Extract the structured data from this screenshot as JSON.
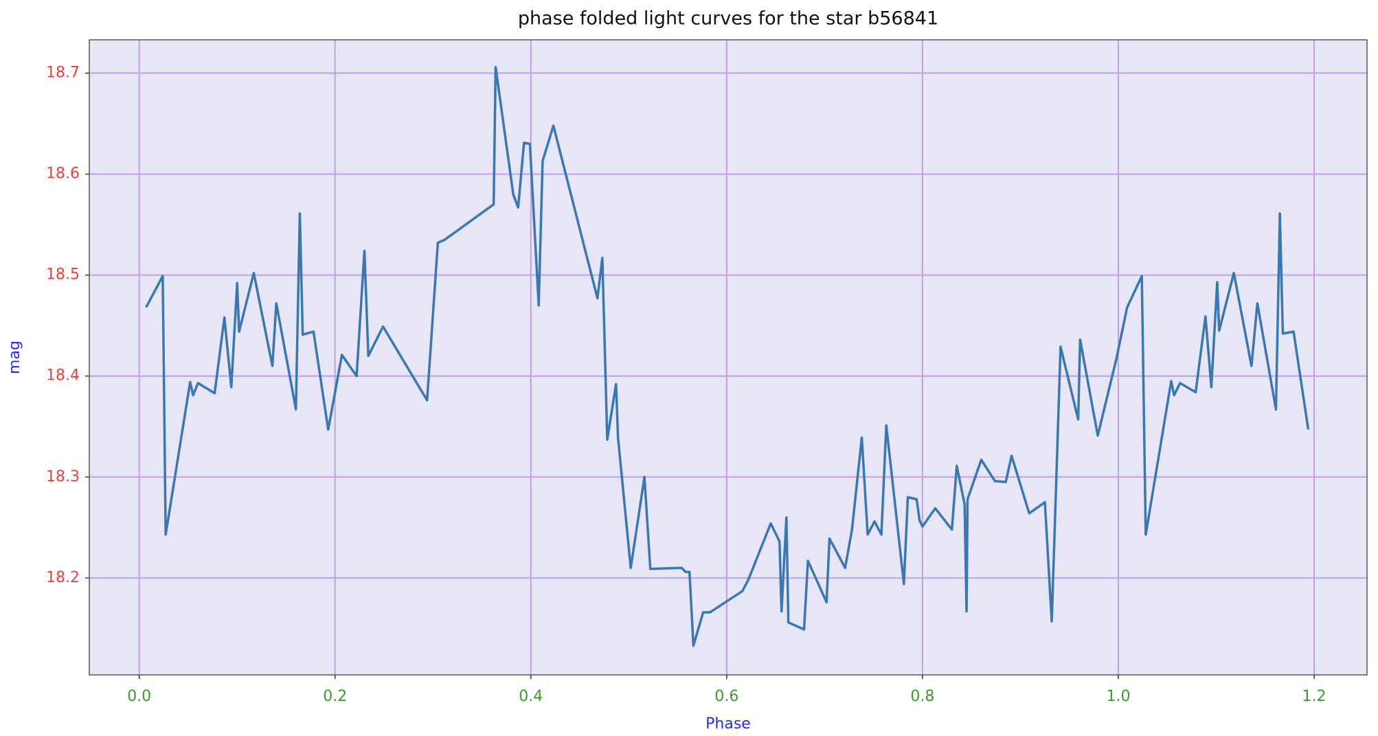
{
  "chart_data": {
    "type": "line",
    "title": "phase folded light curves for the star b56841",
    "xlabel": "Phase",
    "ylabel": "mag",
    "color": "#3a76af",
    "background": "#e6e6f7",
    "grid": true,
    "grid_color": "#c39ee6",
    "xtick_color": "#3a9a2a",
    "ytick_color": "#e8403a",
    "label_color": "#2a2ae8",
    "xlim": [
      -0.051,
      1.254
    ],
    "ylim": [
      18.104,
      18.733
    ],
    "xticks": [
      {
        "value": 0,
        "label": "0.0"
      },
      0.2,
      0.4,
      0.6,
      0.8,
      {
        "value": 1,
        "label": "1.0"
      },
      1.2
    ],
    "yticks": [
      18.2,
      18.3,
      18.4,
      18.5,
      18.6,
      18.7
    ],
    "x": [
      0.007,
      0.024,
      0.027,
      0.052,
      0.055,
      0.06,
      0.077,
      0.087,
      0.094,
      0.1,
      0.102,
      0.117,
      0.136,
      0.14,
      0.16,
      0.164,
      0.167,
      0.178,
      0.193,
      0.207,
      0.222,
      0.23,
      0.234,
      0.249,
      0.294,
      0.305,
      0.312,
      0.362,
      0.364,
      0.382,
      0.387,
      0.393,
      0.399,
      0.408,
      0.412,
      0.423,
      0.468,
      0.473,
      0.478,
      0.487,
      0.489,
      0.502,
      0.516,
      0.522,
      0.554,
      0.558,
      0.562,
      0.566,
      0.576,
      0.583,
      0.616,
      0.622,
      0.645,
      0.654,
      0.656,
      0.661,
      0.663,
      0.679,
      0.683,
      0.702,
      0.705,
      0.721,
      0.728,
      0.738,
      0.744,
      0.751,
      0.758,
      0.763,
      0.781,
      0.785,
      0.794,
      0.797,
      0.8,
      0.813,
      0.83,
      0.835,
      0.843,
      0.845,
      0.846,
      0.86,
      0.874,
      0.885,
      0.891,
      0.909,
      0.925,
      0.932,
      0.941,
      0.959,
      0.961,
      0.979,
      0.998,
      1.009,
      1.024,
      1.028,
      1.054,
      1.057,
      1.063,
      1.079,
      1.089,
      1.095,
      1.101,
      1.103,
      1.118,
      1.136,
      1.142,
      1.161,
      1.165,
      1.168,
      1.179,
      1.194
    ],
    "values": [
      18.468,
      18.499,
      18.243,
      18.394,
      18.381,
      18.393,
      18.383,
      18.458,
      18.389,
      18.492,
      18.444,
      18.502,
      18.41,
      18.472,
      18.367,
      18.561,
      18.441,
      18.444,
      18.347,
      18.421,
      18.4,
      18.524,
      18.42,
      18.449,
      18.376,
      18.532,
      18.535,
      18.57,
      18.706,
      18.58,
      18.567,
      18.631,
      18.63,
      18.47,
      18.613,
      18.648,
      18.477,
      18.517,
      18.337,
      18.392,
      18.339,
      18.21,
      18.3,
      18.209,
      18.21,
      18.206,
      18.206,
      18.133,
      18.166,
      18.166,
      18.187,
      18.198,
      18.254,
      18.236,
      18.167,
      18.26,
      18.156,
      18.149,
      18.217,
      18.176,
      18.239,
      18.21,
      18.248,
      18.339,
      18.243,
      18.256,
      18.243,
      18.351,
      18.194,
      18.28,
      18.278,
      18.257,
      18.251,
      18.269,
      18.248,
      18.311,
      18.273,
      18.167,
      18.278,
      18.317,
      18.296,
      18.295,
      18.321,
      18.264,
      18.275,
      18.157,
      18.429,
      18.357,
      18.436,
      18.341,
      18.417,
      18.468,
      18.499,
      18.243,
      18.395,
      18.381,
      18.393,
      18.384,
      18.459,
      18.389,
      18.493,
      18.445,
      18.502,
      18.41,
      18.472,
      18.367,
      18.561,
      18.442,
      18.444,
      18.347
    ]
  }
}
